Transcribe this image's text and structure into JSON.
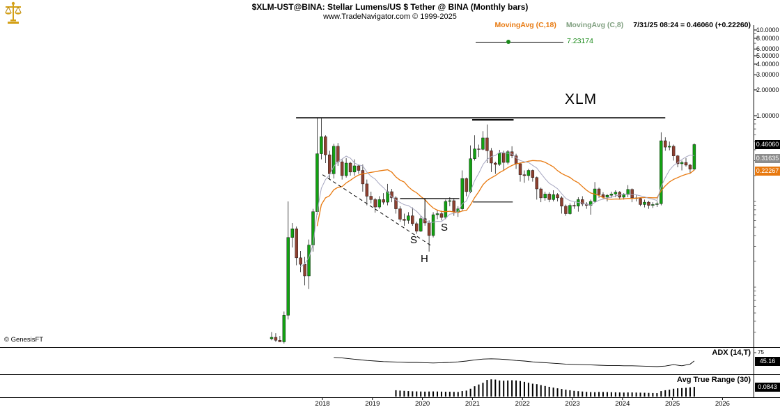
{
  "header": {
    "title": "$XLM-UST@BINA:  Stellar Lumens/US $ Tether @ BINA  (Monthly bars)",
    "subtitle": "www.TradeNavigator.com © 1999-2025",
    "legend": {
      "ma18_label": "MovingAvg (C,18)",
      "ma8_label": "MovingAvg (C,8)",
      "quote": "7/31/25 08:24 = 0.46060 (+0.22260)"
    },
    "marker_value": "7.23174"
  },
  "watermark": "© GenesisFT",
  "price_boxes": {
    "last": "0.46060",
    "ma8": "0.31635",
    "ma18": "0.22267"
  },
  "panels": {
    "adx": {
      "label": "ADX (14,T)",
      "level_label": "75",
      "value": "45.16"
    },
    "atr": {
      "label": "Avg True Range (30)",
      "value": "0.0843"
    }
  },
  "annotations": {
    "symbol": "XLM",
    "left_shoulder": "S",
    "head": "H",
    "right_shoulder": "S",
    "lines": [
      {
        "name": "resistance-line",
        "i1": 5.9,
        "p1": 0.945,
        "i2": 95.0,
        "p2": 0.945,
        "style": "solid",
        "w": 1.5
      },
      {
        "name": "resistance-line-2021",
        "i1": 48.4,
        "p1": 0.895,
        "i2": 58.4,
        "p2": 0.895,
        "style": "solid",
        "w": 1.8
      },
      {
        "name": "downtrend-line",
        "i1": 12.3,
        "p1": 0.205,
        "i2": 38.5,
        "p2": 0.0305,
        "style": "dashed",
        "w": 1
      },
      {
        "name": "neckline",
        "i1": 31.0,
        "p1": 0.108,
        "i2": 45.3,
        "p2": 0.108,
        "style": "solid",
        "w": 1.2
      },
      {
        "name": "head-marker",
        "i1": 37.0,
        "p1": 0.108,
        "i2": 37.0,
        "p2": 0.0615,
        "style": "solid",
        "w": 1
      },
      {
        "name": "neckline-right",
        "i1": 48.6,
        "p1": 0.0985,
        "i2": 58.2,
        "p2": 0.0985,
        "style": "solid",
        "w": 1.2
      }
    ]
  },
  "colors": {
    "up_candle": "#12a012",
    "down_candle": "#8d4030",
    "ma18": "#e8790f",
    "ma8": "#a6a6c0",
    "legend_ma8": "#7f9f7f",
    "marker_green": "#1a8a1a",
    "box_black": "#000000",
    "box_gray": "#8d8d8d",
    "box_orange": "#e8790f"
  },
  "x_axis": {
    "years": [
      "2018",
      "2019",
      "2020",
      "2021",
      "2022",
      "2023",
      "2024",
      "2025",
      "2026"
    ]
  },
  "y_axis": {
    "ticks": [
      {
        "v": 10,
        "label": "10.0000"
      },
      {
        "v": 8,
        "label": "8.00000"
      },
      {
        "v": 6,
        "label": "6.00000"
      },
      {
        "v": 5,
        "label": "5.00000"
      },
      {
        "v": 4,
        "label": "4.00000"
      },
      {
        "v": 3,
        "label": "3.00000"
      },
      {
        "v": 2,
        "label": "2.00000"
      },
      {
        "v": 1,
        "label": "1.00000"
      }
    ]
  },
  "chart_data": {
    "type": "candlestick",
    "symbol": "$XLM-UST@BINA",
    "description": "Stellar Lumens/US $ Tether @ BINA",
    "bar_interval": "Monthly",
    "scale": "log",
    "last_bar": "7/31/25 08:24",
    "last_price": 0.4606,
    "change": 0.2226,
    "start_month": "2017-01",
    "ohlc_columns": [
      "open",
      "high",
      "low",
      "close"
    ],
    "ohlc": [
      [
        0.0025,
        0.003,
        0.0024,
        0.0026
      ],
      [
        0.0026,
        0.0029,
        0.0023,
        0.0024
      ],
      [
        0.0024,
        0.0027,
        0.0023,
        0.0023
      ],
      [
        0.0023,
        0.0052,
        0.0022,
        0.0047
      ],
      [
        0.0047,
        0.1,
        0.0042,
        0.038
      ],
      [
        0.038,
        0.056,
        0.029,
        0.048
      ],
      [
        0.048,
        0.051,
        0.018,
        0.022
      ],
      [
        0.022,
        0.0265,
        0.015,
        0.0185
      ],
      [
        0.0185,
        0.0225,
        0.0105,
        0.0135
      ],
      [
        0.0135,
        0.036,
        0.0095,
        0.031
      ],
      [
        0.031,
        0.082,
        0.026,
        0.076
      ],
      [
        0.076,
        0.94,
        0.07,
        0.36
      ],
      [
        0.36,
        0.93,
        0.31,
        0.57
      ],
      [
        0.57,
        0.59,
        0.28,
        0.35
      ],
      [
        0.35,
        0.39,
        0.18,
        0.21
      ],
      [
        0.21,
        0.47,
        0.185,
        0.44
      ],
      [
        0.44,
        0.48,
        0.26,
        0.29
      ],
      [
        0.29,
        0.31,
        0.18,
        0.2
      ],
      [
        0.2,
        0.32,
        0.19,
        0.28
      ],
      [
        0.28,
        0.29,
        0.2,
        0.22
      ],
      [
        0.22,
        0.31,
        0.2,
        0.26
      ],
      [
        0.26,
        0.27,
        0.21,
        0.23
      ],
      [
        0.23,
        0.27,
        0.13,
        0.16
      ],
      [
        0.16,
        0.18,
        0.09,
        0.115
      ],
      [
        0.115,
        0.13,
        0.095,
        0.105
      ],
      [
        0.105,
        0.11,
        0.074,
        0.086
      ],
      [
        0.086,
        0.115,
        0.082,
        0.105
      ],
      [
        0.105,
        0.125,
        0.092,
        0.098
      ],
      [
        0.098,
        0.16,
        0.09,
        0.13
      ],
      [
        0.13,
        0.14,
        0.098,
        0.11
      ],
      [
        0.11,
        0.115,
        0.072,
        0.082
      ],
      [
        0.082,
        0.088,
        0.058,
        0.062
      ],
      [
        0.062,
        0.072,
        0.052,
        0.06
      ],
      [
        0.06,
        0.075,
        0.055,
        0.068
      ],
      [
        0.068,
        0.085,
        0.052,
        0.055
      ],
      [
        0.055,
        0.058,
        0.042,
        0.045
      ],
      [
        0.045,
        0.068,
        0.044,
        0.063
      ],
      [
        0.063,
        0.082,
        0.052,
        0.056
      ],
      [
        0.056,
        0.06,
        0.026,
        0.04
      ],
      [
        0.04,
        0.075,
        0.038,
        0.07
      ],
      [
        0.07,
        0.08,
        0.062,
        0.072
      ],
      [
        0.072,
        0.078,
        0.06,
        0.065
      ],
      [
        0.065,
        0.105,
        0.062,
        0.1
      ],
      [
        0.1,
        0.112,
        0.088,
        0.102
      ],
      [
        0.102,
        0.108,
        0.068,
        0.075
      ],
      [
        0.075,
        0.088,
        0.066,
        0.082
      ],
      [
        0.082,
        0.23,
        0.078,
        0.185
      ],
      [
        0.185,
        0.19,
        0.115,
        0.13
      ],
      [
        0.13,
        0.45,
        0.125,
        0.315
      ],
      [
        0.315,
        0.59,
        0.3,
        0.41
      ],
      [
        0.41,
        0.46,
        0.33,
        0.405
      ],
      [
        0.405,
        0.66,
        0.395,
        0.55
      ],
      [
        0.55,
        0.79,
        0.28,
        0.39
      ],
      [
        0.39,
        0.42,
        0.22,
        0.28
      ],
      [
        0.28,
        0.29,
        0.21,
        0.27
      ],
      [
        0.27,
        0.4,
        0.26,
        0.365
      ],
      [
        0.365,
        0.39,
        0.23,
        0.285
      ],
      [
        0.285,
        0.4,
        0.27,
        0.38
      ],
      [
        0.38,
        0.44,
        0.32,
        0.34
      ],
      [
        0.34,
        0.36,
        0.24,
        0.275
      ],
      [
        0.275,
        0.285,
        0.17,
        0.205
      ],
      [
        0.205,
        0.23,
        0.165,
        0.2
      ],
      [
        0.2,
        0.24,
        0.175,
        0.23
      ],
      [
        0.23,
        0.235,
        0.17,
        0.19
      ],
      [
        0.19,
        0.195,
        0.105,
        0.14
      ],
      [
        0.14,
        0.145,
        0.098,
        0.11
      ],
      [
        0.11,
        0.13,
        0.102,
        0.122
      ],
      [
        0.122,
        0.128,
        0.098,
        0.105
      ],
      [
        0.105,
        0.135,
        0.1,
        0.12
      ],
      [
        0.12,
        0.125,
        0.1,
        0.11
      ],
      [
        0.11,
        0.115,
        0.072,
        0.088
      ],
      [
        0.088,
        0.092,
        0.068,
        0.072
      ],
      [
        0.072,
        0.095,
        0.07,
        0.09
      ],
      [
        0.09,
        0.098,
        0.082,
        0.088
      ],
      [
        0.088,
        0.112,
        0.076,
        0.105
      ],
      [
        0.105,
        0.115,
        0.088,
        0.093
      ],
      [
        0.093,
        0.098,
        0.082,
        0.09
      ],
      [
        0.09,
        0.105,
        0.07,
        0.1
      ],
      [
        0.1,
        0.168,
        0.098,
        0.14
      ],
      [
        0.14,
        0.145,
        0.11,
        0.12
      ],
      [
        0.12,
        0.128,
        0.108,
        0.112
      ],
      [
        0.112,
        0.122,
        0.1,
        0.118
      ],
      [
        0.118,
        0.13,
        0.11,
        0.122
      ],
      [
        0.122,
        0.135,
        0.112,
        0.128
      ],
      [
        0.128,
        0.132,
        0.105,
        0.112
      ],
      [
        0.112,
        0.125,
        0.105,
        0.12
      ],
      [
        0.12,
        0.155,
        0.112,
        0.138
      ],
      [
        0.138,
        0.142,
        0.098,
        0.11
      ],
      [
        0.11,
        0.118,
        0.1,
        0.108
      ],
      [
        0.108,
        0.112,
        0.088,
        0.092
      ],
      [
        0.092,
        0.105,
        0.085,
        0.098
      ],
      [
        0.098,
        0.102,
        0.082,
        0.09
      ],
      [
        0.09,
        0.098,
        0.084,
        0.092
      ],
      [
        0.092,
        0.1,
        0.086,
        0.094
      ],
      [
        0.094,
        0.64,
        0.09,
        0.51
      ],
      [
        0.51,
        0.56,
        0.39,
        0.43
      ],
      [
        0.43,
        0.5,
        0.395,
        0.44
      ],
      [
        0.44,
        0.46,
        0.3,
        0.34
      ],
      [
        0.34,
        0.35,
        0.25,
        0.275
      ],
      [
        0.275,
        0.3,
        0.23,
        0.285
      ],
      [
        0.285,
        0.32,
        0.255,
        0.265
      ],
      [
        0.265,
        0.275,
        0.215,
        0.238
      ],
      [
        0.238,
        0.475,
        0.23,
        0.4606
      ]
    ],
    "indicators": {
      "moving_avg_18": {
        "period": 18,
        "current": 0.22267
      },
      "moving_avg_8": {
        "period": 8,
        "current": 0.31635
      },
      "adx": {
        "params": "14,T",
        "current": 45.16,
        "scale_max_label": 75,
        "points": [
          [
            15,
            58
          ],
          [
            17,
            56
          ],
          [
            19,
            53
          ],
          [
            21,
            50
          ],
          [
            23,
            47
          ],
          [
            25,
            45
          ],
          [
            27,
            43
          ],
          [
            29,
            42
          ],
          [
            31,
            41
          ],
          [
            33,
            40
          ],
          [
            35,
            40
          ],
          [
            37,
            39
          ],
          [
            39,
            38
          ],
          [
            41,
            39
          ],
          [
            43,
            40
          ],
          [
            45,
            42
          ],
          [
            47,
            45
          ],
          [
            49,
            49
          ],
          [
            51,
            52
          ],
          [
            53,
            53
          ],
          [
            55,
            52
          ],
          [
            57,
            50
          ],
          [
            59,
            47
          ],
          [
            61,
            45
          ],
          [
            63,
            42
          ],
          [
            65,
            40
          ],
          [
            67,
            38
          ],
          [
            69,
            36
          ],
          [
            71,
            34
          ],
          [
            73,
            33
          ],
          [
            75,
            32
          ],
          [
            77,
            31
          ],
          [
            79,
            30
          ],
          [
            81,
            29
          ],
          [
            83,
            29
          ],
          [
            85,
            28
          ],
          [
            87,
            28
          ],
          [
            89,
            27
          ],
          [
            91,
            26
          ],
          [
            93,
            25
          ],
          [
            95,
            27
          ],
          [
            97,
            32
          ],
          [
            99,
            28
          ],
          [
            101,
            34
          ],
          [
            102,
            45.16
          ]
        ]
      },
      "avg_true_range": {
        "period": 30,
        "current": 0.0843,
        "start_index": 30,
        "values": [
          0.055,
          0.052,
          0.05,
          0.048,
          0.046,
          0.045,
          0.044,
          0.043,
          0.044,
          0.045,
          0.044,
          0.043,
          0.042,
          0.042,
          0.041,
          0.04,
          0.048,
          0.052,
          0.068,
          0.09,
          0.105,
          0.12,
          0.145,
          0.15,
          0.148,
          0.14,
          0.138,
          0.14,
          0.142,
          0.14,
          0.135,
          0.128,
          0.12,
          0.112,
          0.108,
          0.1,
          0.092,
          0.085,
          0.078,
          0.072,
          0.066,
          0.06,
          0.055,
          0.05,
          0.047,
          0.044,
          0.041,
          0.039,
          0.038,
          0.04,
          0.04,
          0.039,
          0.038,
          0.037,
          0.036,
          0.035,
          0.036,
          0.036,
          0.035,
          0.034,
          0.033,
          0.032,
          0.031,
          0.03,
          0.048,
          0.055,
          0.06,
          0.068,
          0.072,
          0.074,
          0.076,
          0.08,
          0.0843
        ]
      }
    }
  }
}
